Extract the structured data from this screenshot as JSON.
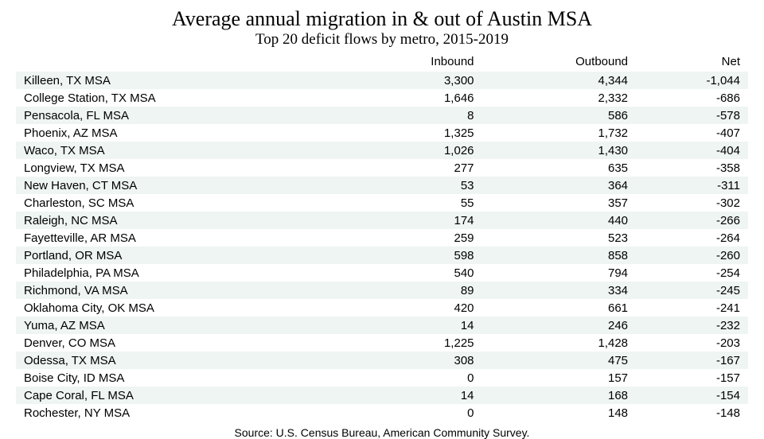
{
  "title": "Average annual migration in & out of Austin MSA",
  "subtitle": "Top 20 deficit flows by metro, 2015-2019",
  "table": {
    "columns": [
      "",
      "Inbound",
      "Outbound",
      "Net"
    ],
    "rows": [
      [
        "Killeen, TX MSA",
        "3,300",
        "4,344",
        "-1,044"
      ],
      [
        "College Station, TX MSA",
        "1,646",
        "2,332",
        "-686"
      ],
      [
        "Pensacola, FL MSA",
        "8",
        "586",
        "-578"
      ],
      [
        "Phoenix, AZ MSA",
        "1,325",
        "1,732",
        "-407"
      ],
      [
        "Waco, TX MSA",
        "1,026",
        "1,430",
        "-404"
      ],
      [
        "Longview, TX MSA",
        "277",
        "635",
        "-358"
      ],
      [
        "New Haven, CT MSA",
        "53",
        "364",
        "-311"
      ],
      [
        "Charleston, SC MSA",
        "55",
        "357",
        "-302"
      ],
      [
        "Raleigh, NC MSA",
        "174",
        "440",
        "-266"
      ],
      [
        "Fayetteville, AR MSA",
        "259",
        "523",
        "-264"
      ],
      [
        "Portland, OR MSA",
        "598",
        "858",
        "-260"
      ],
      [
        "Philadelphia, PA MSA",
        "540",
        "794",
        "-254"
      ],
      [
        "Richmond, VA MSA",
        "89",
        "334",
        "-245"
      ],
      [
        "Oklahoma City, OK MSA",
        "420",
        "661",
        "-241"
      ],
      [
        "Yuma, AZ MSA",
        "14",
        "246",
        "-232"
      ],
      [
        "Denver, CO MSA",
        "1,225",
        "1,428",
        "-203"
      ],
      [
        "Odessa, TX MSA",
        "308",
        "475",
        "-167"
      ],
      [
        "Boise City, ID MSA",
        "0",
        "157",
        "-157"
      ],
      [
        "Cape Coral, FL MSA",
        "14",
        "168",
        "-154"
      ],
      [
        "Rochester, NY MSA",
        "0",
        "148",
        "-148"
      ]
    ],
    "odd_row_bg": "#eef5f3",
    "even_row_bg": "#ffffff",
    "header_fontsize": 15,
    "cell_fontsize": 15,
    "col_align": [
      "left",
      "right",
      "right",
      "right"
    ]
  },
  "source": "Source:  U.S. Census Bureau, American Community Survey.",
  "style": {
    "title_fontsize": 26,
    "subtitle_fontsize": 19,
    "title_font": "serif",
    "body_font": "sans-serif",
    "background": "#ffffff",
    "text_color": "#000000"
  }
}
